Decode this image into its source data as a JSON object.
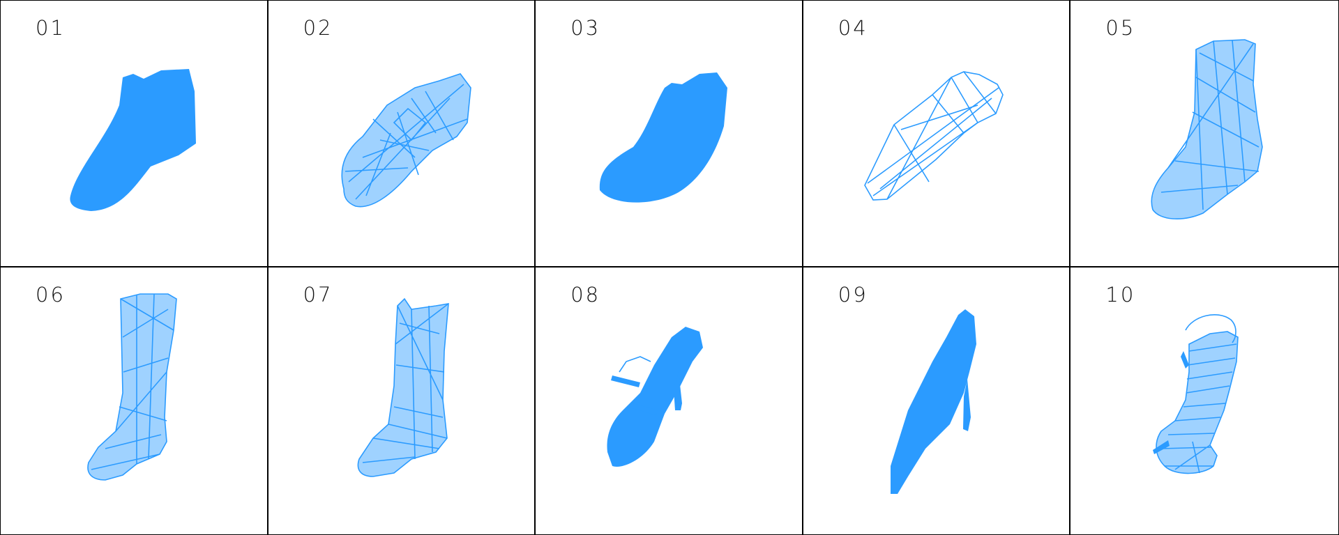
{
  "panels": [
    {
      "label": "01",
      "icon": "low-sneaker-dense-icon"
    },
    {
      "label": "02",
      "icon": "lace-up-shoe-wireframe-icon"
    },
    {
      "label": "03",
      "icon": "clog-dense-icon"
    },
    {
      "label": "04",
      "icon": "flat-slipper-wireframe-icon"
    },
    {
      "label": "05",
      "icon": "ankle-boot-wireframe-icon"
    },
    {
      "label": "06",
      "icon": "tall-boot-wireframe-icon"
    },
    {
      "label": "07",
      "icon": "cowboy-boot-wireframe-icon"
    },
    {
      "label": "08",
      "icon": "strappy-heel-sandal-icon"
    },
    {
      "label": "09",
      "icon": "pointed-pump-icon"
    },
    {
      "label": "10",
      "icon": "slingback-sandal-icon"
    }
  ],
  "colors": {
    "mesh": "#2b9bff",
    "border": "#000000",
    "label": "#111111"
  }
}
